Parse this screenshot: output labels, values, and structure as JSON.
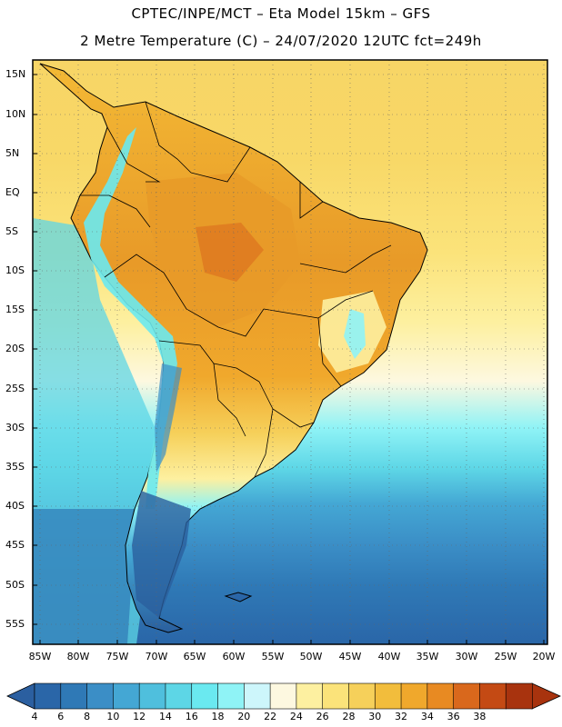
{
  "header": {
    "line1": "CPTEC/INPE/MCT –  Eta Model 15km – GFS",
    "line2": "2 Metre Temperature (C) – 24/07/2020 12UTC fct=249h"
  },
  "lat_labels": [
    "15N",
    "10N",
    "5N",
    "EQ",
    "5S",
    "10S",
    "15S",
    "20S",
    "25S",
    "30S",
    "35S",
    "40S",
    "45S",
    "50S",
    "55S"
  ],
  "lon_labels": [
    "85W",
    "80W",
    "75W",
    "70W",
    "65W",
    "60W",
    "55W",
    "50W",
    "45W",
    "40W",
    "35W",
    "30W",
    "25W",
    "20W"
  ],
  "colorbar": {
    "labels": [
      "4",
      "6",
      "8",
      "10",
      "12",
      "14",
      "16",
      "18",
      "20",
      "22",
      "24",
      "26",
      "28",
      "30",
      "32",
      "34",
      "36",
      "38"
    ],
    "colors": [
      "#2a66a8",
      "#2f79b6",
      "#3b8ec6",
      "#44a7d4",
      "#4fbfdd",
      "#5dd6e6",
      "#6ae9f0",
      "#8ff3f6",
      "#cdf6fb",
      "#fdf8e0",
      "#fdf0a0",
      "#fbe37a",
      "#f6d05a",
      "#f2bd3c",
      "#f0a82c",
      "#e88a22",
      "#d9681c",
      "#c44a14",
      "#a8330e"
    ],
    "left_arrow_color": "#2b5fa0",
    "right_arrow_color": "#a8330e"
  },
  "legend_land_colors": {
    "hot_interior": "#e89a28",
    "warm": "#f3b935",
    "mild": "#f8d860",
    "cool": "#fdf1a8",
    "cold_andes": "#6ae9f0",
    "colder_andes": "#3b8ec6",
    "coldest": "#2a5f9e"
  }
}
